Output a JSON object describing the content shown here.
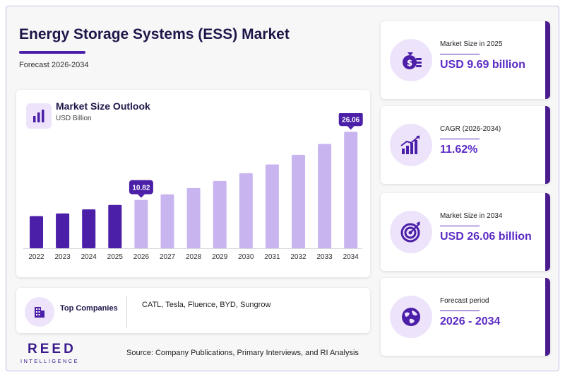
{
  "header": {
    "title": "Energy Storage Systems (ESS) Market",
    "subtitle": "Forecast 2026-2034"
  },
  "chart_card": {
    "title": "Market Size Outlook",
    "unit": "USD Billion",
    "icon": "bar-chart-icon"
  },
  "chart_data": {
    "type": "bar",
    "categories": [
      "2022",
      "2023",
      "2024",
      "2025",
      "2026",
      "2027",
      "2028",
      "2029",
      "2030",
      "2031",
      "2032",
      "2033",
      "2034"
    ],
    "values": [
      7.2,
      7.8,
      8.7,
      9.69,
      10.82,
      12.07,
      13.47,
      15.04,
      16.79,
      18.74,
      20.91,
      23.34,
      26.06
    ],
    "data_labels": [
      {
        "category": "2026",
        "text": "10.82"
      },
      {
        "category": "2034",
        "text": "26.06"
      }
    ],
    "historical_color": "#4b1fa8",
    "forecast_color": "#c8b5f0",
    "historical_through": "2025",
    "ylim": [
      0,
      28
    ],
    "grid": false,
    "xlabel": "",
    "ylabel": ""
  },
  "companies": {
    "label": "Top Companies",
    "list": "CATL, Tesla, Fluence, BYD, Sungrow",
    "icon": "building-icon"
  },
  "source": "Source: Company Publications, Primary Interviews, and RI Analysis",
  "logo": {
    "main": "REED",
    "sub": "INTELLIGENCE"
  },
  "stats": [
    {
      "label": "Market Size in 2025",
      "value": "USD 9.69 billion",
      "icon": "money-bag-icon"
    },
    {
      "label": "CAGR (2026-2034)",
      "value": "11.62%",
      "icon": "growth-chart-icon"
    },
    {
      "label": "Market Size in 2034",
      "value": "USD 26.06 billion",
      "icon": "target-icon"
    },
    {
      "label": "Forecast period",
      "value": "2026 - 2034",
      "icon": "globe-icon"
    }
  ],
  "colors": {
    "accent": "#4b1fa8",
    "accent_light": "#c8b5f0",
    "title": "#1f1548",
    "icon_bg": "#ede4fb"
  }
}
